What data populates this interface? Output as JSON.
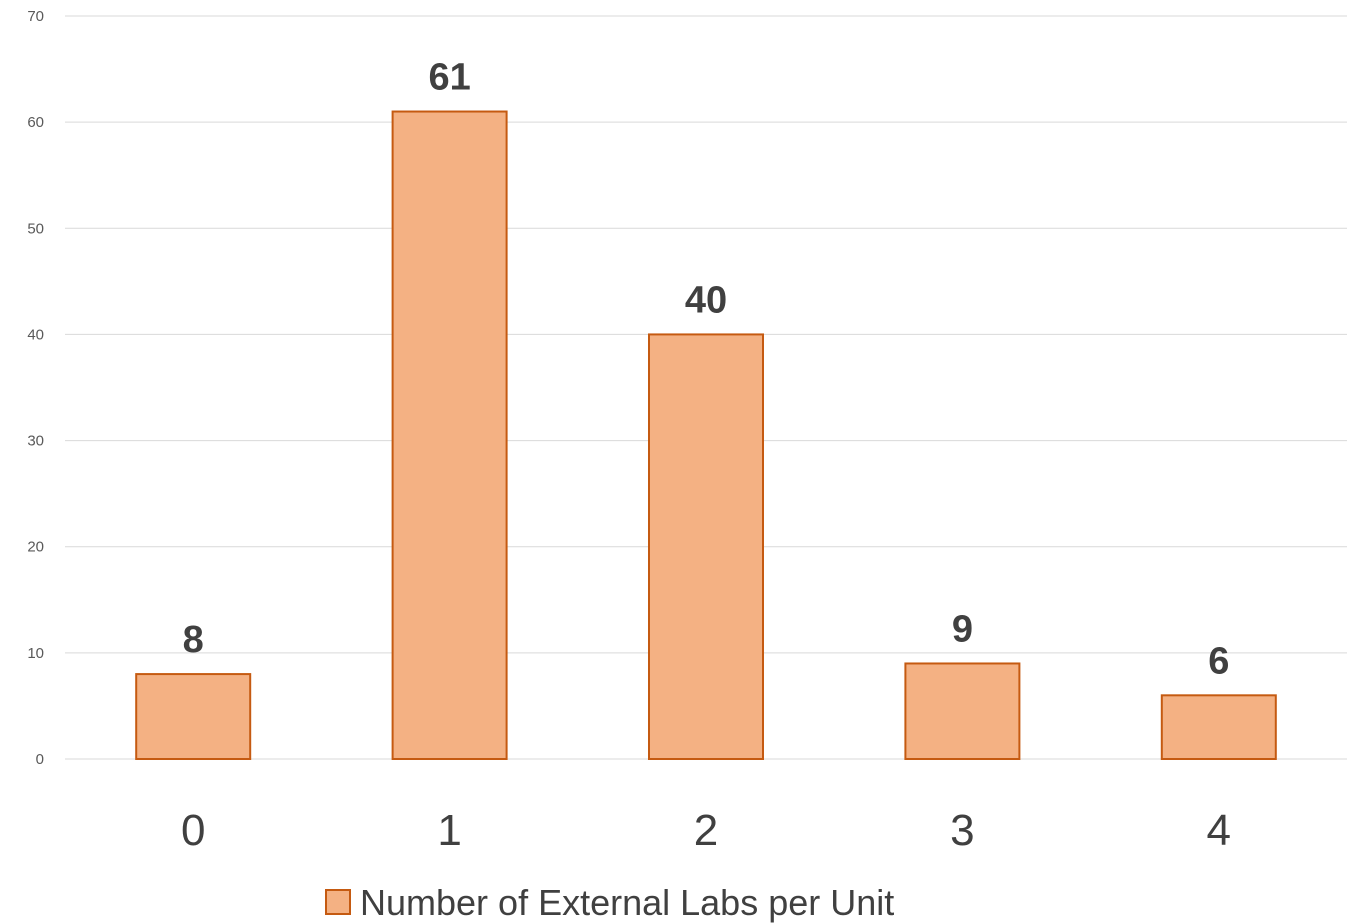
{
  "chart_data": {
    "type": "bar",
    "categories": [
      "0",
      "1",
      "2",
      "3",
      "4"
    ],
    "series": [
      {
        "name": "Number of External Labs per Unit",
        "values": [
          8,
          61,
          40,
          9,
          6
        ],
        "color": "#F4B183",
        "border_color": "#C55A11"
      }
    ],
    "ylim": [
      0,
      70
    ],
    "yticks": [
      0,
      10,
      20,
      30,
      40,
      50,
      60,
      70
    ],
    "grid": true,
    "legend": "bottom",
    "data_labels": true
  }
}
